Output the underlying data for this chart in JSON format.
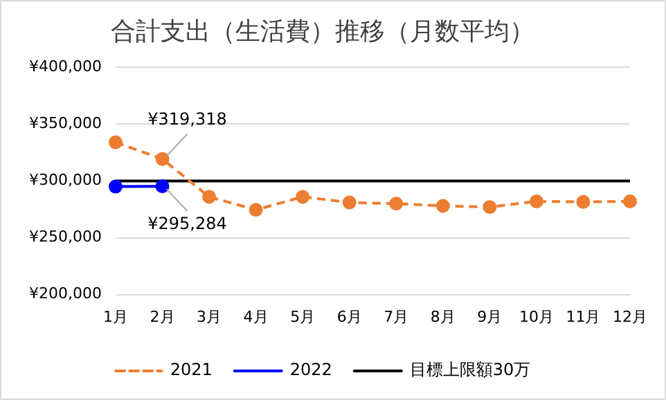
{
  "chart_data": {
    "type": "line",
    "title": "合計支出（生活費）推移（月数平均）",
    "categories": [
      "1月",
      "2月",
      "3月",
      "4月",
      "5月",
      "6月",
      "7月",
      "8月",
      "9月",
      "10月",
      "11月",
      "12月"
    ],
    "series": [
      {
        "name": "2021",
        "color": "#ed7d31",
        "line_style": "dashed",
        "marker": "circle",
        "values": [
          334000,
          319318,
          286000,
          274500,
          286000,
          281000,
          280000,
          278000,
          277000,
          282000,
          281500,
          282000
        ]
      },
      {
        "name": "2022",
        "color": "#0000ff",
        "line_style": "solid",
        "marker": "circle",
        "values": [
          295000,
          295284,
          null,
          null,
          null,
          null,
          null,
          null,
          null,
          null,
          null,
          null
        ]
      },
      {
        "name": "目標上限額30万",
        "color": "#000000",
        "line_style": "solid",
        "marker": "none",
        "values": [
          300000,
          300000,
          300000,
          300000,
          300000,
          300000,
          300000,
          300000,
          300000,
          300000,
          300000,
          300000
        ]
      }
    ],
    "annotations": [
      {
        "text": "¥319,318",
        "x": "2月",
        "y": 319318
      },
      {
        "text": "¥295,284",
        "x": "2月",
        "y": 295284
      }
    ],
    "ylim": [
      200000,
      400000
    ],
    "yticks": [
      {
        "value": 200000,
        "label": "¥200,000"
      },
      {
        "value": 250000,
        "label": "¥250,000"
      },
      {
        "value": 300000,
        "label": "¥300,000"
      },
      {
        "value": 350000,
        "label": "¥350,000"
      },
      {
        "value": 400000,
        "label": "¥400,000"
      }
    ],
    "grid": "y",
    "legend": "bottom"
  }
}
